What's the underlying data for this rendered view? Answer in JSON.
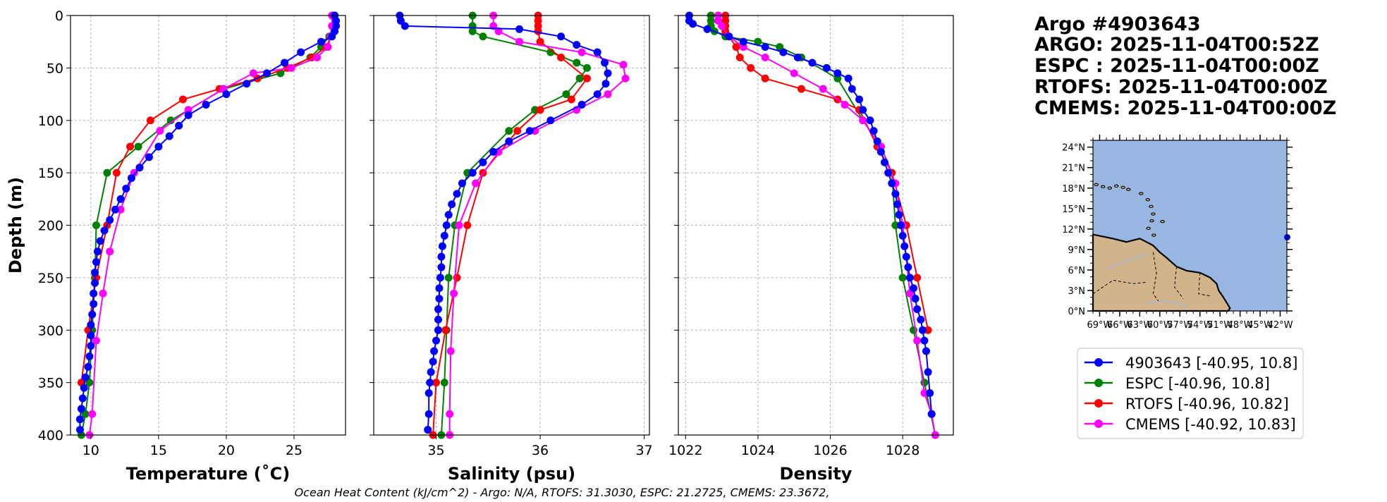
{
  "colors": {
    "argo": "#0000ff",
    "espc": "#008000",
    "rtofs": "#ff0000",
    "cmems": "#ff00ff",
    "ocean": "#97b6e1",
    "land": "#d2b48c"
  },
  "header": {
    "lines": [
      "Argo #4903643",
      "ARGO: 2025-11-04T00:52Z",
      "ESPC : 2025-11-04T00:00Z",
      "RTOFS: 2025-11-04T00:00Z",
      "CMEMS: 2025-11-04T00:00Z"
    ]
  },
  "footer": {
    "ohc": "Ocean Heat Content (kJ/cm^2) - Argo: N/A,  RTOFS: 31.3030,  ESPC: 21.2725,  CMEMS: 23.3672,"
  },
  "legend": [
    {
      "label": "4903643 [-40.95, 10.8]",
      "color": "#0000ff"
    },
    {
      "label": "ESPC [-40.96, 10.8]",
      "color": "#008000"
    },
    {
      "label": "RTOFS [-40.96, 10.82]",
      "color": "#ff0000"
    },
    {
      "label": "CMEMS [-40.92, 10.83]",
      "color": "#ff00ff"
    }
  ],
  "map": {
    "lat_ticks": [
      "24°N",
      "21°N",
      "18°N",
      "15°N",
      "12°N",
      "9°N",
      "6°N",
      "3°N",
      "0°N"
    ],
    "lon_ticks": [
      "69°W",
      "66°W",
      "63°W",
      "60°W",
      "57°W",
      "54°W",
      "51°W",
      "48°W",
      "45°W",
      "42°W"
    ],
    "lon_range": [
      -70,
      -41
    ],
    "lat_range": [
      0,
      25
    ],
    "float_position": {
      "lon": -40.95,
      "lat": 10.8
    }
  },
  "chart_data": [
    {
      "type": "line",
      "xlabel": "Temperature (˚C)",
      "ylabel": "Depth (m)",
      "xlim": [
        8.5,
        28.8
      ],
      "ylim": [
        400,
        0
      ],
      "xticks": [
        10,
        15,
        20,
        25
      ],
      "yticks": [
        0,
        50,
        100,
        150,
        200,
        250,
        300,
        350,
        400
      ],
      "series": [
        {
          "name": "4903643",
          "x": [
            28.0,
            28.1,
            28.1,
            28.0,
            27.8,
            27.0,
            25.5,
            24.3,
            23.0,
            21.5,
            20.0,
            18.5,
            17.2,
            16.5,
            15.8,
            15.0,
            14.3,
            13.6,
            13.0,
            12.6,
            12.2,
            11.8,
            11.4,
            11.0,
            10.7,
            10.5,
            10.4,
            10.3,
            10.3,
            10.2,
            10.2,
            10.1,
            10.0,
            10.0,
            10.0,
            9.9,
            9.8,
            9.6,
            9.5,
            9.4,
            9.3,
            9.2,
            9.2
          ],
          "y": [
            0,
            5,
            10,
            15,
            20,
            25,
            35,
            45,
            55,
            65,
            75,
            85,
            95,
            105,
            115,
            125,
            135,
            145,
            155,
            165,
            175,
            185,
            195,
            205,
            215,
            225,
            235,
            245,
            255,
            265,
            275,
            285,
            295,
            305,
            315,
            325,
            335,
            345,
            355,
            365,
            375,
            385,
            395
          ]
        },
        {
          "name": "ESPC",
          "x": [
            28.0,
            27.9,
            27.6,
            27.0,
            26.2,
            24.0,
            19.8,
            15.9,
            13.5,
            11.2,
            10.4,
            10.3,
            10.1,
            9.9,
            9.6,
            9.3
          ],
          "y": [
            0,
            10,
            20,
            30,
            40,
            55,
            70,
            100,
            125,
            150,
            200,
            250,
            300,
            350,
            380,
            400
          ]
        },
        {
          "name": "RTOFS",
          "x": [
            27.9,
            27.8,
            27.7,
            27.4,
            26.3,
            24.5,
            22.3,
            19.5,
            16.8,
            14.4,
            12.9,
            11.9,
            11.2,
            10.4,
            9.8,
            9.3
          ],
          "y": [
            0,
            10,
            20,
            30,
            40,
            50,
            60,
            70,
            80,
            100,
            125,
            150,
            200,
            250,
            300,
            350
          ]
        },
        {
          "name": "CMEMS",
          "x": [
            27.8,
            27.8,
            27.7,
            27.5,
            26.7,
            24.8,
            22.0,
            19.8,
            17.2,
            15.1,
            13.2,
            12.2,
            11.4,
            10.9,
            10.4,
            10.1,
            9.9
          ],
          "y": [
            0,
            10,
            20,
            30,
            40,
            50,
            55,
            70,
            90,
            110,
            150,
            185,
            225,
            265,
            310,
            380,
            400
          ]
        }
      ]
    },
    {
      "type": "line",
      "xlabel": "Salinity (psu)",
      "xlim": [
        34.4,
        37.05
      ],
      "ylim": [
        400,
        0
      ],
      "xticks": [
        35,
        36,
        37
      ],
      "yticks": [
        0,
        50,
        100,
        150,
        200,
        250,
        300,
        350,
        400
      ],
      "series": [
        {
          "name": "4903643",
          "x": [
            34.65,
            34.66,
            34.7,
            35.8,
            36.2,
            36.35,
            36.55,
            36.62,
            36.65,
            36.63,
            36.55,
            36.4,
            36.1,
            35.9,
            35.7,
            35.55,
            35.45,
            35.35,
            35.25,
            35.2,
            35.15,
            35.12,
            35.1,
            35.08,
            35.06,
            35.05,
            35.05,
            35.04,
            35.03,
            35.03,
            35.02,
            35.02,
            35.02,
            35.0,
            34.98,
            34.97,
            34.95,
            34.94,
            34.93,
            34.93,
            34.92
          ],
          "y": [
            0,
            5,
            10,
            13,
            20,
            28,
            35,
            45,
            55,
            65,
            75,
            85,
            100,
            110,
            120,
            130,
            140,
            150,
            160,
            170,
            180,
            190,
            200,
            210,
            220,
            230,
            240,
            250,
            260,
            270,
            280,
            290,
            300,
            310,
            320,
            330,
            340,
            350,
            360,
            380,
            395
          ]
        },
        {
          "name": "ESPC",
          "x": [
            35.35,
            35.35,
            35.35,
            35.45,
            36.1,
            36.35,
            36.45,
            36.38,
            36.25,
            35.95,
            35.7,
            35.3,
            35.18,
            35.12,
            35.1,
            35.08,
            35.05
          ],
          "y": [
            0,
            10,
            15,
            20,
            35,
            45,
            50,
            60,
            75,
            90,
            110,
            150,
            200,
            250,
            300,
            350,
            400
          ]
        },
        {
          "name": "RTOFS",
          "x": [
            35.98,
            35.98,
            35.98,
            35.98,
            36.0,
            36.2,
            36.45,
            36.3,
            36.0,
            35.78,
            35.45,
            35.3,
            35.2,
            35.09,
            35.0,
            34.97
          ],
          "y": [
            0,
            5,
            10,
            15,
            25,
            40,
            60,
            80,
            90,
            110,
            150,
            200,
            250,
            300,
            350,
            400
          ]
        },
        {
          "name": "CMEMS",
          "x": [
            35.55,
            35.55,
            35.6,
            35.8,
            36.4,
            36.8,
            36.82,
            36.65,
            36.35,
            35.95,
            35.6,
            35.38,
            35.22,
            35.17,
            35.14,
            35.13,
            35.13
          ],
          "y": [
            0,
            10,
            15,
            25,
            35,
            47,
            60,
            75,
            90,
            110,
            130,
            160,
            200,
            265,
            320,
            380,
            400
          ]
        }
      ]
    },
    {
      "type": "line",
      "xlabel": "Density",
      "xlim": [
        1021.8,
        1029.4
      ],
      "ylim": [
        400,
        0
      ],
      "xticks": [
        1022,
        1024,
        1026,
        1028
      ],
      "yticks": [
        0,
        50,
        100,
        150,
        200,
        250,
        300,
        350,
        400
      ],
      "series": [
        {
          "name": "4903643",
          "x": [
            1022.1,
            1022.1,
            1022.2,
            1022.6,
            1023.2,
            1023.6,
            1024.2,
            1024.7,
            1025.1,
            1025.5,
            1025.9,
            1026.2,
            1026.5,
            1026.6,
            1026.8,
            1026.9,
            1027.1,
            1027.2,
            1027.3,
            1027.4,
            1027.5,
            1027.6,
            1027.7,
            1027.8,
            1027.85,
            1027.9,
            1027.95,
            1028.0,
            1028.05,
            1028.1,
            1028.15,
            1028.2,
            1028.3,
            1028.35,
            1028.4,
            1028.5,
            1028.55,
            1028.6,
            1028.65,
            1028.7,
            1028.75,
            1028.8
          ],
          "y": [
            0,
            5,
            8,
            13,
            20,
            25,
            30,
            35,
            40,
            45,
            50,
            55,
            60,
            70,
            80,
            90,
            100,
            110,
            120,
            130,
            140,
            150,
            160,
            170,
            180,
            190,
            200,
            210,
            220,
            230,
            240,
            250,
            260,
            270,
            280,
            290,
            300,
            310,
            320,
            340,
            360,
            380
          ]
        },
        {
          "name": "ESPC",
          "x": [
            1022.7,
            1022.7,
            1022.7,
            1022.8,
            1023.1,
            1024.0,
            1024.6,
            1025.2,
            1026.2,
            1026.9,
            1027.4,
            1027.7,
            1027.8,
            1028.0,
            1028.3,
            1028.6,
            1028.9
          ],
          "y": [
            0,
            5,
            10,
            15,
            20,
            25,
            30,
            40,
            60,
            100,
            125,
            150,
            200,
            250,
            300,
            350,
            400
          ]
        },
        {
          "name": "RTOFS",
          "x": [
            1023.1,
            1023.1,
            1023.1,
            1023.1,
            1023.2,
            1023.4,
            1023.5,
            1023.8,
            1024.2,
            1025.2,
            1026.2,
            1026.8,
            1027.3,
            1027.7,
            1028.1,
            1028.4,
            1028.7
          ],
          "y": [
            0,
            5,
            10,
            15,
            20,
            30,
            40,
            50,
            60,
            70,
            80,
            90,
            125,
            150,
            200,
            250,
            300
          ]
        },
        {
          "name": "CMEMS",
          "x": [
            1022.9,
            1022.9,
            1023.0,
            1023.2,
            1023.6,
            1024.2,
            1025.0,
            1025.8,
            1026.4,
            1026.9,
            1027.4,
            1027.8,
            1028.0,
            1028.2,
            1028.4,
            1028.6,
            1028.8,
            1028.9
          ],
          "y": [
            0,
            5,
            10,
            20,
            30,
            40,
            55,
            70,
            85,
            100,
            125,
            160,
            200,
            265,
            310,
            360,
            380,
            400
          ]
        }
      ]
    }
  ]
}
